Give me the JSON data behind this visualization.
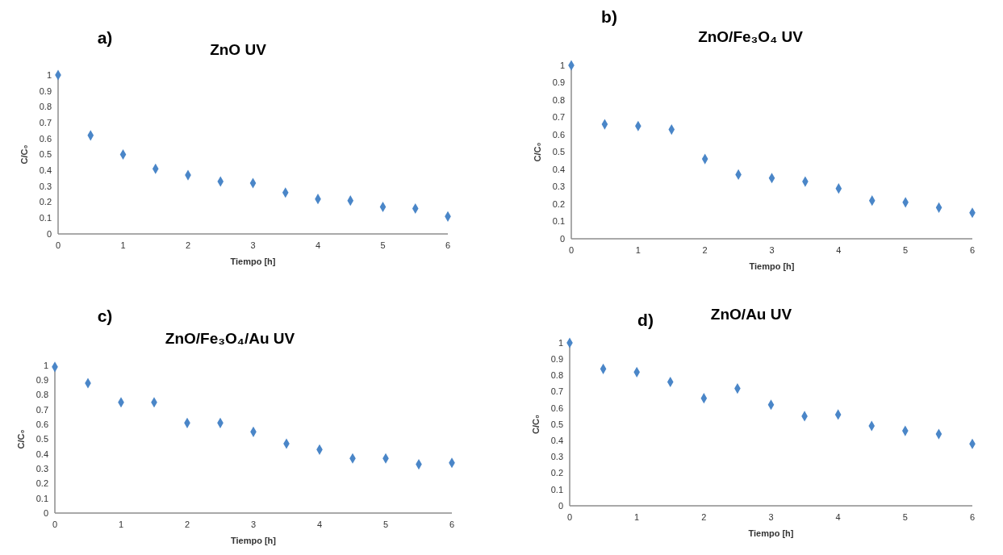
{
  "chart_data": [
    {
      "type": "scatter",
      "title": "ZnO UV",
      "annotations": [
        "a)"
      ],
      "xlabel": "Tiempo [h]",
      "ylabel": "C/C₀",
      "marker": "diamond",
      "x": [
        0,
        0.5,
        1,
        1.5,
        2,
        2.5,
        3,
        3.5,
        4,
        4.5,
        5,
        5.5,
        6
      ],
      "xlim": [
        0,
        6
      ],
      "xticks": [
        0,
        1,
        2,
        3,
        4,
        5,
        6
      ],
      "ylim": [
        0,
        1
      ],
      "yticks": [
        0,
        0.1,
        0.2,
        0.3,
        0.4,
        0.5,
        0.6,
        0.7,
        0.8,
        0.9,
        1
      ],
      "series": [
        {
          "color": "#4a86c8",
          "values": [
            1,
            0.62,
            0.5,
            0.41,
            0.37,
            0.33,
            0.32,
            0.26,
            0.22,
            0.21,
            0.17,
            0.16,
            0.11
          ]
        }
      ]
    },
    {
      "type": "scatter",
      "title": "ZnO/Fe₃O₄ UV",
      "annotations": [
        "b)"
      ],
      "xlabel": "Tiempo [h]",
      "ylabel": "C/C₀",
      "marker": "diamond",
      "x": [
        0,
        0.5,
        1,
        1.5,
        2,
        2.5,
        3,
        3.5,
        4,
        4.5,
        5,
        5.5,
        6
      ],
      "xlim": [
        0,
        6
      ],
      "xticks": [
        0,
        1,
        2,
        3,
        4,
        5,
        6
      ],
      "ylim": [
        0,
        1
      ],
      "yticks": [
        0,
        0.1,
        0.2,
        0.3,
        0.4,
        0.5,
        0.6,
        0.7,
        0.8,
        0.9,
        1
      ],
      "series": [
        {
          "color": "#4a86c8",
          "values": [
            1,
            0.66,
            0.65,
            0.63,
            0.46,
            0.37,
            0.35,
            0.33,
            0.29,
            0.22,
            0.21,
            0.18,
            0.15
          ]
        }
      ]
    },
    {
      "type": "scatter",
      "title": "ZnO/Fe₃O₄/Au UV",
      "annotations": [
        "c)"
      ],
      "xlabel": "Tiempo [h]",
      "ylabel": "C/C₀",
      "marker": "diamond",
      "x": [
        0,
        0.5,
        1,
        1.5,
        2,
        2.5,
        3,
        3.5,
        4,
        4.5,
        5,
        5.5,
        6
      ],
      "xlim": [
        0,
        6
      ],
      "xticks": [
        0,
        1,
        2,
        3,
        4,
        5,
        6
      ],
      "ylim": [
        0,
        1
      ],
      "yticks": [
        0,
        0.1,
        0.2,
        0.3,
        0.4,
        0.5,
        0.6,
        0.7,
        0.8,
        0.9,
        1
      ],
      "series": [
        {
          "color": "#4a86c8",
          "values": [
            0.99,
            0.88,
            0.75,
            0.75,
            0.61,
            0.61,
            0.55,
            0.47,
            0.43,
            0.37,
            0.37,
            0.33,
            0.34
          ]
        }
      ]
    },
    {
      "type": "scatter",
      "title": "ZnO/Au UV",
      "annotations": [
        "d)"
      ],
      "xlabel": "Tiempo [h]",
      "ylabel": "C/C₀",
      "marker": "diamond",
      "x": [
        0,
        0.5,
        1,
        1.5,
        2,
        2.5,
        3,
        3.5,
        4,
        4.5,
        5,
        5.5,
        6
      ],
      "xlim": [
        0,
        6
      ],
      "xticks": [
        0,
        1,
        2,
        3,
        4,
        5,
        6
      ],
      "ylim": [
        0,
        1
      ],
      "yticks": [
        0,
        0.1,
        0.2,
        0.3,
        0.4,
        0.5,
        0.6,
        0.7,
        0.8,
        0.9,
        1
      ],
      "series": [
        {
          "color": "#4a86c8",
          "values": [
            1,
            0.84,
            0.82,
            0.76,
            0.66,
            0.72,
            0.62,
            0.55,
            0.56,
            0.49,
            0.46,
            0.44,
            0.38
          ]
        }
      ]
    }
  ]
}
